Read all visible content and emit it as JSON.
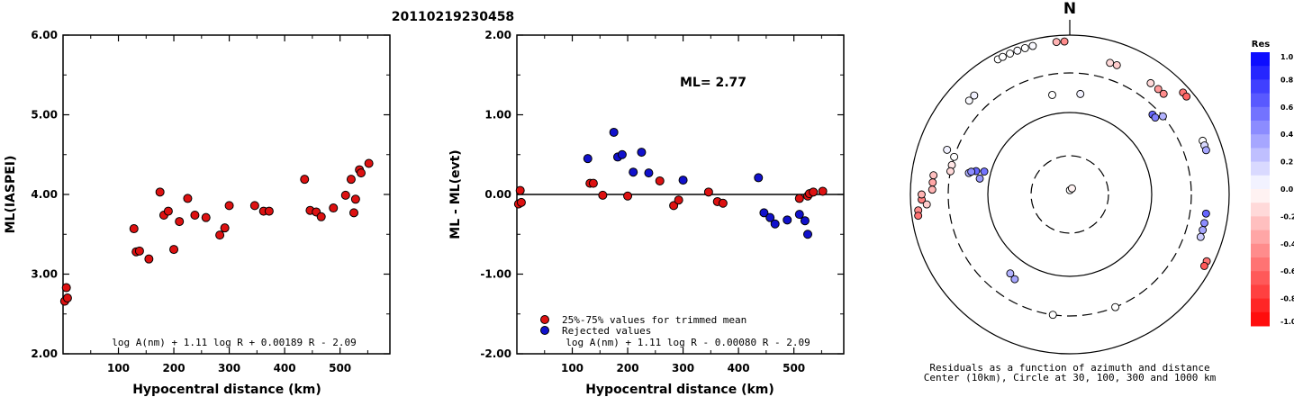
{
  "page_title": "20110219230458",
  "chart_data": [
    {
      "type": "scatter",
      "title": "",
      "xlabel": "Hypocentral distance (km)",
      "ylabel": "ML(IASPEI)",
      "xlim": [
        0,
        590
      ],
      "ylim": [
        2.0,
        6.0
      ],
      "x_ticks": [
        "100",
        "200",
        "300",
        "400",
        "500"
      ],
      "y_ticks": [
        "2.00",
        "3.00",
        "4.00",
        "5.00",
        "6.00"
      ],
      "formula": "log A(nm) + 1.11 log R + 0.00189 R - 2.09",
      "point_color": "#dd1111",
      "points": [
        [
          3,
          2.66
        ],
        [
          6,
          2.83
        ],
        [
          8,
          2.7
        ],
        [
          128,
          3.57
        ],
        [
          132,
          3.28
        ],
        [
          138,
          3.29
        ],
        [
          155,
          3.19
        ],
        [
          175,
          4.03
        ],
        [
          182,
          3.74
        ],
        [
          190,
          3.79
        ],
        [
          200,
          3.31
        ],
        [
          210,
          3.66
        ],
        [
          225,
          3.95
        ],
        [
          238,
          3.74
        ],
        [
          258,
          3.71
        ],
        [
          283,
          3.49
        ],
        [
          292,
          3.58
        ],
        [
          300,
          3.86
        ],
        [
          346,
          3.86
        ],
        [
          362,
          3.79
        ],
        [
          372,
          3.79
        ],
        [
          436,
          4.19
        ],
        [
          446,
          3.8
        ],
        [
          457,
          3.78
        ],
        [
          466,
          3.72
        ],
        [
          488,
          3.83
        ],
        [
          510,
          3.99
        ],
        [
          520,
          4.19
        ],
        [
          525,
          3.77
        ],
        [
          528,
          3.94
        ],
        [
          535,
          4.31
        ],
        [
          538,
          4.27
        ],
        [
          552,
          4.39
        ]
      ]
    },
    {
      "type": "scatter",
      "title": "",
      "xlabel": "Hypocentral distance (km)",
      "ylabel": "ML - ML(evt)",
      "xlim": [
        0,
        590
      ],
      "ylim": [
        -2.0,
        2.0
      ],
      "x_ticks": [
        "100",
        "200",
        "300",
        "400",
        "500"
      ],
      "y_ticks": [
        "-2.00",
        "-1.00",
        "0.00",
        "1.00",
        "2.00"
      ],
      "annotation": "ML= 2.77",
      "formula": "log A(nm) + 1.11 log R - 0.00080 R - 2.09",
      "legend": [
        {
          "label": "25%-75% values for trimmed mean",
          "color": "#dd1111"
        },
        {
          "label": "Rejected values",
          "color": "#1111cc"
        }
      ],
      "series": [
        {
          "name": "25%-75% values for trimmed mean",
          "color": "#dd1111",
          "points": [
            [
              3,
              -0.12
            ],
            [
              6,
              0.05
            ],
            [
              8,
              -0.1
            ],
            [
              132,
              0.14
            ],
            [
              138,
              0.14
            ],
            [
              155,
              -0.01
            ],
            [
              200,
              -0.02
            ],
            [
              258,
              0.17
            ],
            [
              283,
              -0.14
            ],
            [
              292,
              -0.07
            ],
            [
              346,
              0.03
            ],
            [
              362,
              -0.09
            ],
            [
              372,
              -0.11
            ],
            [
              510,
              -0.05
            ],
            [
              525,
              -0.02
            ],
            [
              528,
              0.01
            ],
            [
              535,
              0.03
            ],
            [
              552,
              0.04
            ]
          ]
        },
        {
          "name": "Rejected values",
          "color": "#1111cc",
          "points": [
            [
              128,
              0.45
            ],
            [
              175,
              0.78
            ],
            [
              182,
              0.47
            ],
            [
              190,
              0.5
            ],
            [
              210,
              0.28
            ],
            [
              225,
              0.53
            ],
            [
              238,
              0.27
            ],
            [
              300,
              0.18
            ],
            [
              436,
              0.21
            ],
            [
              446,
              -0.23
            ],
            [
              457,
              -0.29
            ],
            [
              466,
              -0.37
            ],
            [
              488,
              -0.32
            ],
            [
              510,
              -0.25
            ],
            [
              520,
              -0.33
            ],
            [
              525,
              -0.5
            ]
          ]
        }
      ]
    },
    {
      "type": "polar-scatter",
      "title": "N",
      "caption_line1": "Residuals as a function of azimuth and distance",
      "caption_line2": "Center (10km), Circle at 30, 100, 300 and 1000 km",
      "ring_distances_km": [
        10,
        30,
        100,
        300,
        1000
      ],
      "colorbar": {
        "title": "Res",
        "labels": [
          "1.0",
          "0.8",
          "0.6",
          "0.4",
          "0.2",
          "0.0",
          "-0.2",
          "-0.4",
          "-0.6",
          "-0.8",
          "-1.0"
        ],
        "max_color": "#0000ff",
        "zero_color": "#ffffff",
        "min_color": "#ff0000"
      },
      "points": [
        {
          "az": 2,
          "dist_km": 6,
          "res": 0.0
        },
        {
          "az": 20,
          "dist_km": 12,
          "res": -0.05
        },
        {
          "az": 350,
          "dist_km": 170,
          "res": 0.0
        },
        {
          "az": 6,
          "dist_km": 170,
          "res": 0.05
        },
        {
          "az": 332,
          "dist_km": 1000,
          "res": 0.0
        },
        {
          "az": 334,
          "dist_km": 1000,
          "res": 0.0
        },
        {
          "az": 337,
          "dist_km": 1000,
          "res": 0.0
        },
        {
          "az": 340,
          "dist_km": 1000,
          "res": 0.02
        },
        {
          "az": 343,
          "dist_km": 1000,
          "res": 0.0
        },
        {
          "az": 346,
          "dist_km": 1000,
          "res": 0.02
        },
        {
          "az": 355,
          "dist_km": 1000,
          "res": -0.3
        },
        {
          "az": 358,
          "dist_km": 1000,
          "res": -0.45
        },
        {
          "az": 313,
          "dist_km": 500,
          "res": 0.02
        },
        {
          "az": 316,
          "dist_km": 500,
          "res": 0.05
        },
        {
          "az": 17,
          "dist_km": 500,
          "res": -0.15
        },
        {
          "az": 20,
          "dist_km": 500,
          "res": -0.2
        },
        {
          "az": 36,
          "dist_km": 500,
          "res": -0.15
        },
        {
          "az": 40,
          "dist_km": 500,
          "res": -0.4
        },
        {
          "az": 43,
          "dist_km": 500,
          "res": -0.45
        },
        {
          "az": 48,
          "dist_km": 800,
          "res": -0.55
        },
        {
          "az": 50,
          "dist_km": 800,
          "res": -0.6
        },
        {
          "az": 46,
          "dist_km": 250,
          "res": 0.6
        },
        {
          "az": 48,
          "dist_km": 250,
          "res": 0.5
        },
        {
          "az": 50,
          "dist_km": 300,
          "res": 0.3
        },
        {
          "az": 68,
          "dist_km": 600,
          "res": 0.0
        },
        {
          "az": 70,
          "dist_km": 600,
          "res": 0.15
        },
        {
          "az": 72,
          "dist_km": 600,
          "res": 0.35
        },
        {
          "az": 98,
          "dist_km": 500,
          "res": 0.6
        },
        {
          "az": 102,
          "dist_km": 500,
          "res": 0.45
        },
        {
          "az": 105,
          "dist_km": 500,
          "res": 0.35
        },
        {
          "az": 108,
          "dist_km": 500,
          "res": 0.2
        },
        {
          "az": 116,
          "dist_km": 800,
          "res": -0.55
        },
        {
          "az": 118,
          "dist_km": 800,
          "res": -0.65
        },
        {
          "az": 213,
          "dist_km": 170,
          "res": 0.35
        },
        {
          "az": 217,
          "dist_km": 160,
          "res": 0.3
        },
        {
          "az": 188,
          "dist_km": 300,
          "res": 0.0
        },
        {
          "az": 158,
          "dist_km": 300,
          "res": 0.0
        },
        {
          "az": 290,
          "dist_km": 400,
          "res": 0.05
        },
        {
          "az": 288,
          "dist_km": 300,
          "res": 0.0
        },
        {
          "az": 284,
          "dist_km": 300,
          "res": -0.1
        },
        {
          "az": 281,
          "dist_km": 300,
          "res": -0.15
        },
        {
          "az": 278,
          "dist_km": 500,
          "res": -0.25
        },
        {
          "az": 275,
          "dist_km": 500,
          "res": -0.35
        },
        {
          "az": 272,
          "dist_km": 500,
          "res": -0.3
        },
        {
          "az": 268,
          "dist_km": 700,
          "res": -0.5
        },
        {
          "az": 264,
          "dist_km": 800,
          "res": -0.45
        },
        {
          "az": 266,
          "dist_km": 600,
          "res": -0.2
        },
        {
          "az": 262,
          "dist_km": 900,
          "res": -0.55
        },
        {
          "az": 270,
          "dist_km": 700,
          "res": -0.3
        },
        {
          "az": 284,
          "dist_km": 150,
          "res": 0.6
        },
        {
          "az": 285,
          "dist_km": 120,
          "res": 0.55
        },
        {
          "az": 282,
          "dist_km": 180,
          "res": 0.3
        },
        {
          "az": 280,
          "dist_km": 130,
          "res": 0.4
        },
        {
          "az": 283,
          "dist_km": 170,
          "res": 0.45
        }
      ]
    }
  ]
}
